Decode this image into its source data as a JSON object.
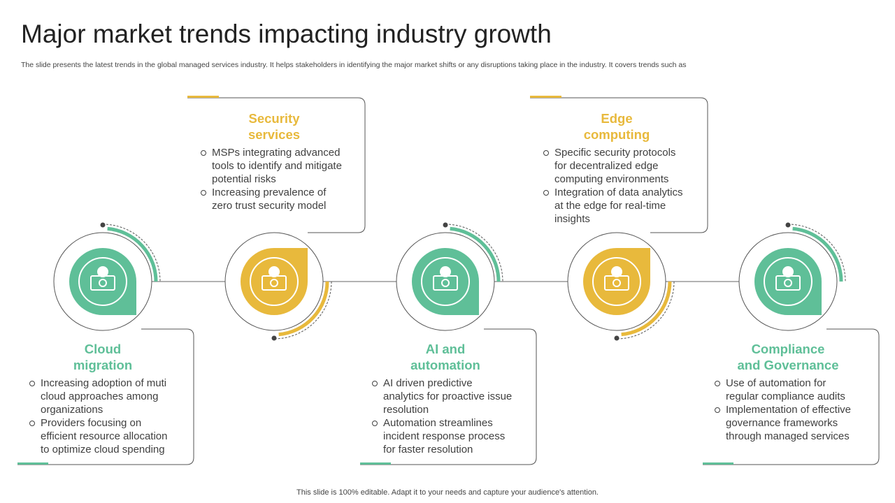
{
  "header": {
    "title": "Major market trends impacting industry growth",
    "subtitle": "The slide presents the latest trends in the global managed services industry. It helps stakeholders in identifying the major market shifts or any disruptions taking place in the industry. It covers trends such as"
  },
  "trends": [
    {
      "title_lines": [
        "Cloud",
        "migration"
      ],
      "bullets": [
        "Increasing adoption of muti cloud approaches among organizations",
        "Providers focusing on efficient resource allocation to optimize cloud spending"
      ]
    },
    {
      "title_lines": [
        "Security",
        "services"
      ],
      "bullets": [
        "MSPs integrating advanced tools to identify and mitigate potential risks",
        "Increasing prevalence of zero trust security model"
      ]
    },
    {
      "title_lines": [
        "AI and",
        "automation"
      ],
      "bullets": [
        "AI driven predictive analytics for proactive issue resolution",
        "Automation streamlines incident response process for faster resolution"
      ]
    },
    {
      "title_lines": [
        "Edge",
        "computing"
      ],
      "bullets": [
        "Specific security protocols for decentralized edge computing environments",
        "Integration of data analytics at the edge for real-time insights"
      ]
    },
    {
      "title_lines": [
        "Compliance",
        "and Governance"
      ],
      "bullets": [
        "Use of automation for regular compliance audits",
        "Implementation of effective governance frameworks through managed services"
      ]
    }
  ],
  "footer": "This slide is 100% editable. Adapt it to your needs and capture your audience's attention."
}
